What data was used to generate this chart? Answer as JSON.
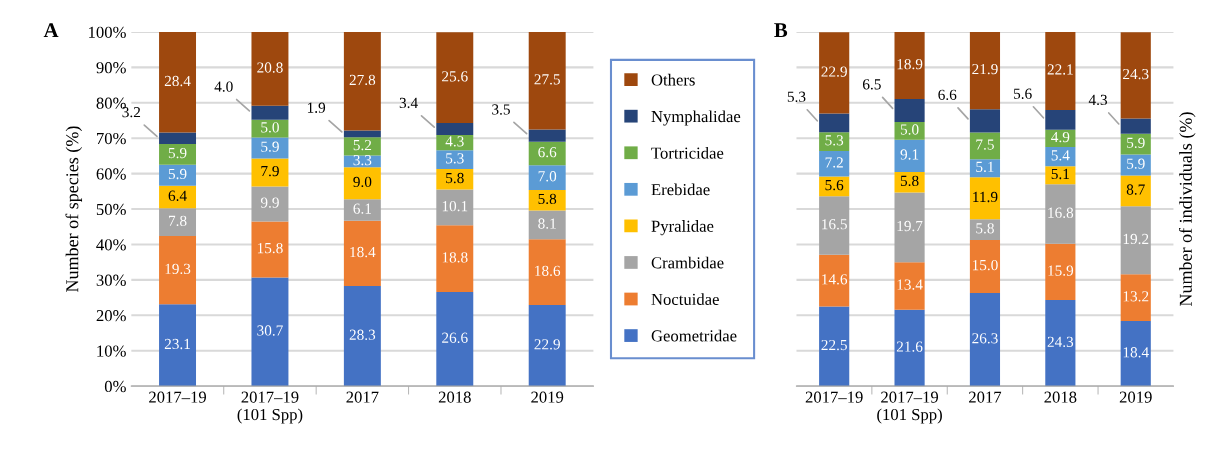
{
  "chart_data": [
    {
      "type": "bar",
      "title": "A",
      "ylabel": "Number of species (%)",
      "stacked": true,
      "legend": "right",
      "grid": "y",
      "categories": [
        "2017–19",
        "2017–19\n(101 Spp)",
        "2017",
        "2018",
        "2019"
      ],
      "ylim": [
        0,
        100
      ],
      "yticks": [
        {
          "value": 0,
          "label": "0%"
        },
        {
          "value": 10,
          "label": "10%"
        },
        {
          "value": 20,
          "label": "20%"
        },
        {
          "value": 30,
          "label": "30%"
        },
        {
          "value": 40,
          "label": "40%"
        },
        {
          "value": 50,
          "label": "50%"
        },
        {
          "value": 60,
          "label": "60%"
        },
        {
          "value": 70,
          "label": "70%"
        },
        {
          "value": 80,
          "label": "80%"
        },
        {
          "value": 90,
          "label": "90%"
        },
        {
          "value": 100,
          "label": "100%"
        }
      ],
      "series": [
        {
          "name": "Geometridae",
          "color": "#4472c4",
          "values": [
            23.1,
            30.7,
            28.3,
            26.6,
            22.9
          ],
          "value_labels": [
            "23.1",
            "30.7",
            "28.3",
            "26.6",
            "22.9"
          ]
        },
        {
          "name": "Noctuidae",
          "color": "#ed7d31",
          "values": [
            19.3,
            15.8,
            18.4,
            18.8,
            18.6
          ],
          "value_labels": [
            "19.3",
            "15.8",
            "18.4",
            "18.8",
            "18.6"
          ]
        },
        {
          "name": "Crambidae",
          "color": "#a5a5a5",
          "values": [
            7.8,
            9.9,
            6.1,
            10.1,
            8.1
          ],
          "value_labels": [
            "7.8",
            "9.9",
            "6.1",
            "10.1",
            "8.1"
          ]
        },
        {
          "name": "Pyralidae",
          "color": "#ffc000",
          "values": [
            6.4,
            7.9,
            9.0,
            5.8,
            5.8
          ],
          "value_labels": [
            "6.4",
            "7.9",
            "9.0",
            "5.8",
            "5.8"
          ]
        },
        {
          "name": "Erebidae",
          "color": "#5b9bd5",
          "values": [
            5.9,
            5.9,
            3.3,
            5.3,
            7.0
          ],
          "value_labels": [
            "5.9",
            "5.9",
            "3.3",
            "5.3",
            "7.0"
          ]
        },
        {
          "name": "Tortricidae",
          "color": "#70ad47",
          "values": [
            5.9,
            5.0,
            5.2,
            4.3,
            6.6
          ],
          "value_labels": [
            "5.9",
            "5.0",
            "5.2",
            "4.3",
            "6.6"
          ]
        },
        {
          "name": "Nymphalidae",
          "color": "#264478",
          "values": [
            3.2,
            4.0,
            1.9,
            3.4,
            3.5
          ],
          "value_labels": [
            "3.2",
            "4.0",
            "1.9",
            "3.4",
            "3.5"
          ]
        },
        {
          "name": "Others",
          "color": "#9e480e",
          "values": [
            28.4,
            20.8,
            27.8,
            25.6,
            27.5
          ],
          "value_labels": [
            "28.4",
            "20.8",
            "27.8",
            "25.6",
            "27.5"
          ]
        }
      ]
    },
    {
      "type": "bar",
      "title": "B",
      "ylabel": "Number of individuals (%)",
      "stacked": true,
      "grid": "y",
      "tick_labels": "x",
      "categories": [
        "2017–19",
        "2017–19\n(101 Spp)",
        "2017",
        "2018",
        "2019"
      ],
      "ylim": [
        0,
        100
      ],
      "yticks": [
        {
          "value": 0,
          "label": null
        },
        {
          "value": 10,
          "label": null
        },
        {
          "value": 20,
          "label": null
        },
        {
          "value": 30,
          "label": null
        },
        {
          "value": 40,
          "label": null
        },
        {
          "value": 50,
          "label": null
        },
        {
          "value": 60,
          "label": null
        },
        {
          "value": 70,
          "label": null
        },
        {
          "value": 80,
          "label": null
        },
        {
          "value": 90,
          "label": null
        },
        {
          "value": 100,
          "label": null
        }
      ],
      "series": [
        {
          "color": "#4472c4",
          "values": [
            22.5,
            21.6,
            26.3,
            24.3,
            18.4
          ],
          "value_labels": [
            "22.5",
            "21.6",
            "26.3",
            "24.3",
            "18.4"
          ]
        },
        {
          "color": "#ed7d31",
          "values": [
            14.6,
            13.4,
            15.0,
            15.9,
            13.2
          ],
          "value_labels": [
            "14.6",
            "13.4",
            "15.0",
            "15.9",
            "13.2"
          ]
        },
        {
          "color": "#a5a5a5",
          "values": [
            16.5,
            19.7,
            5.8,
            16.8,
            19.2
          ],
          "value_labels": [
            "16.5",
            "19.7",
            "5.8",
            "16.8",
            "19.2"
          ]
        },
        {
          "color": "#ffc000",
          "values": [
            5.6,
            5.8,
            11.9,
            5.1,
            8.7
          ],
          "value_labels": [
            "5.6",
            "5.8",
            "11.9",
            "5.1",
            "8.7"
          ]
        },
        {
          "color": "#5b9bd5",
          "values": [
            7.2,
            9.1,
            5.1,
            5.4,
            5.9
          ],
          "value_labels": [
            "7.2",
            "9.1",
            "5.1",
            "5.4",
            "5.9"
          ]
        },
        {
          "color": "#70ad47",
          "values": [
            5.3,
            5.0,
            7.5,
            4.9,
            5.9
          ],
          "value_labels": [
            "5.3",
            "5.0",
            "7.5",
            "4.9",
            "5.9"
          ]
        },
        {
          "color": "#264478",
          "values": [
            5.3,
            6.5,
            6.6,
            5.6,
            4.3
          ],
          "value_labels": [
            "5.3",
            "6.5",
            "6.6",
            "5.6",
            "4.3"
          ]
        },
        {
          "color": "#9e480e",
          "values": [
            22.9,
            18.9,
            21.9,
            22.1,
            24.3
          ],
          "value_labels": [
            "22.9",
            "18.9",
            "21.9",
            "22.1",
            "24.3"
          ]
        }
      ]
    }
  ]
}
